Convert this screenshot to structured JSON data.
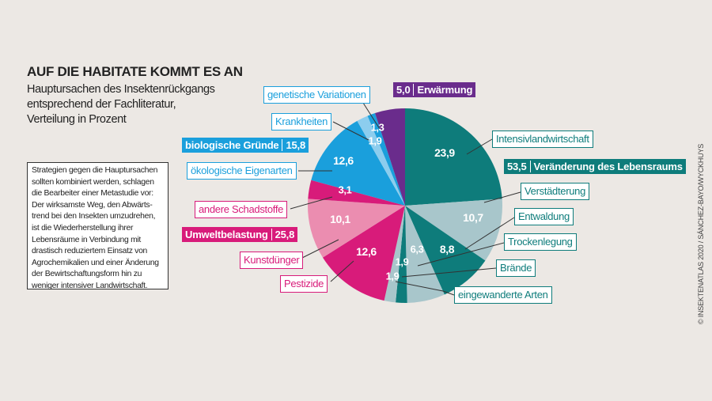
{
  "title": "AUF DIE HABITATE KOMMT ES AN",
  "subtitle": [
    "Hauptursachen des Insektenrückgangs",
    "entsprechend der Fachliteratur,",
    "Verteilung in Prozent"
  ],
  "note": "Strategien gegen die Hauptursachen sollten kombiniert werden, schlagen die Bearbeiter einer Metastudie vor: Der wirksamste Weg, den Abwärts­trend bei den Insekten umzudrehen, ist die Wiederherstellung ihrer Lebensräume in Verbindung mit drastisch reduziertem Einsatz von Agrochemikalien und einer Änderung der Bewirtschaftungsform hin zu weniger intensiver Landwirtschaft.",
  "credit": "© INSEKTENATLAS 2020 / SÁNCHEZ-BAYO/WYCKHUYS",
  "colors": {
    "teal": "#0e7c7b",
    "light": "#a8c6cb",
    "magenta": "#d81b7a",
    "pink": "#eb8db0",
    "blue": "#1a9fdc",
    "lightblue": "#8ccdee",
    "purple": "#6a2c8c"
  },
  "chart_data": {
    "type": "pie",
    "title": "AUF DIE HABITATE KOMMT ES AN",
    "start": "top, clockwise",
    "slices": [
      {
        "label": "Intensivlandwirtschaft",
        "value": 23.9,
        "display": "23,9",
        "color": "teal",
        "group": "Veränderung des Lebensraums"
      },
      {
        "label": "Verstädterung",
        "value": 10.7,
        "display": "10,7",
        "color": "light",
        "group": "Veränderung des Lebensraums"
      },
      {
        "label": "Entwaldung",
        "value": 8.8,
        "display": "8,8",
        "color": "teal",
        "group": "Veränderung des Lebensraums"
      },
      {
        "label": "Trockenlegung",
        "value": 6.3,
        "display": "6,3",
        "color": "light",
        "group": "Veränderung des Lebensraums"
      },
      {
        "label": "Brände",
        "value": 1.9,
        "display": "1,9",
        "color": "teal",
        "group": "Veränderung des Lebensraums"
      },
      {
        "label": "eingewanderte Arten",
        "value": 1.9,
        "display": "1,9",
        "color": "light",
        "group": "Veränderung des Lebensraums"
      },
      {
        "label": "Pestizide",
        "value": 12.6,
        "display": "12,6",
        "color": "magenta",
        "group": "Umweltbelastung"
      },
      {
        "label": "Kunstdünger",
        "value": 10.1,
        "display": "10,1",
        "color": "pink",
        "group": "Umweltbelastung"
      },
      {
        "label": "andere Schadstoffe",
        "value": 3.1,
        "display": "3,1",
        "color": "magenta",
        "group": "Umweltbelastung"
      },
      {
        "label": "ökologische Eigenarten",
        "value": 12.6,
        "display": "12,6",
        "color": "blue",
        "group": "biologische Gründe"
      },
      {
        "label": "Krankheiten",
        "value": 1.9,
        "display": "1,9",
        "color": "lightblue",
        "group": "biologische Gründe"
      },
      {
        "label": "genetische Variationen",
        "value": 1.3,
        "display": "1,3",
        "color": "blue",
        "group": "biologische Gründe"
      },
      {
        "label": "Erwärmung",
        "value": 5.0,
        "display": "5,0",
        "color": "purple",
        "group": "Erwärmung"
      }
    ],
    "groups": [
      {
        "label": "Veränderung des Lebensraums",
        "value": 53.5,
        "display": "53,5"
      },
      {
        "label": "Umweltbelastung",
        "value": 25.8,
        "display": "25,8"
      },
      {
        "label": "biologische Gründe",
        "value": 15.8,
        "display": "15,8"
      },
      {
        "label": "Erwärmung",
        "value": 5.0,
        "display": "5,0"
      }
    ]
  }
}
